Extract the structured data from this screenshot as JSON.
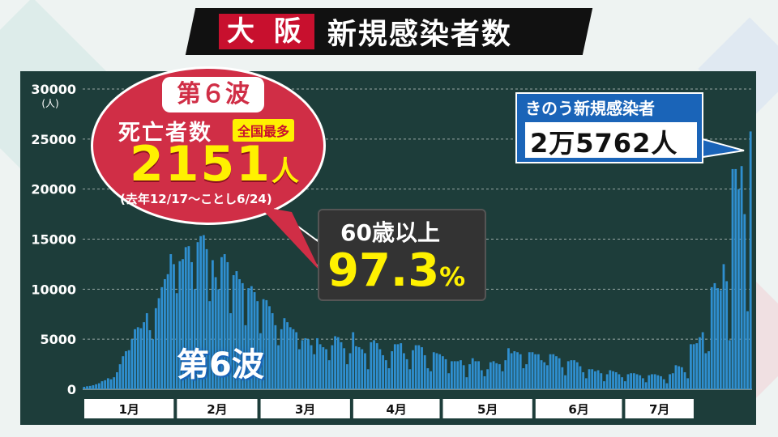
{
  "header": {
    "prefecture": "大 阪",
    "title": "新規感染者数"
  },
  "callouts": {
    "wave_label": "第６波",
    "deaths_label": "死亡者数",
    "national_badge": "全国最多",
    "deaths_value": "2151",
    "deaths_unit": "人",
    "deaths_period": "(去年12/17〜ことし6/24)",
    "elderly_label": "60歳以上",
    "elderly_value": "97.3",
    "elderly_unit": "%",
    "yesterday_label": "きのう新規感染者",
    "yesterday_value": "2万5762人",
    "wave_overlay": "第6波"
  },
  "colors": {
    "bar": "#2f8fd0",
    "panel": "#1d3d3a",
    "callout_red": "#d02e46",
    "highlight_yellow": "#fff100",
    "accent_blue": "#1a64b8"
  },
  "chart_data": {
    "type": "bar",
    "title": "新規感染者数",
    "xlabel": "",
    "ylabel": "(人)",
    "ylim": [
      0,
      30000
    ],
    "yticks": [
      0,
      5000,
      10000,
      15000,
      20000,
      25000,
      30000
    ],
    "ytick_labels": [
      "0",
      "5000",
      "10000",
      "15000",
      "20000",
      "25000",
      "30000"
    ],
    "y_unit_label": "(人)",
    "months": [
      "1月",
      "2月",
      "3月",
      "4月",
      "5月",
      "6月",
      "7月"
    ],
    "month_days": [
      31,
      28,
      31,
      30,
      31,
      30,
      24
    ],
    "grid": true,
    "values": [
      244,
      300,
      333,
      400,
      500,
      600,
      800,
      900,
      1100,
      1000,
      1200,
      1700,
      2500,
      3300,
      3800,
      3900,
      5000,
      6000,
      6200,
      6100,
      6700,
      7600,
      5900,
      5000,
      8100,
      9100,
      10200,
      11000,
      11500,
      13500,
      12500,
      9600,
      12800,
      13000,
      14200,
      14300,
      12700,
      10000,
      14700,
      15300,
      15400,
      14000,
      8800,
      12900,
      11200,
      10000,
      13200,
      13500,
      12700,
      7600,
      11400,
      11800,
      11000,
      10600,
      6400,
      10100,
      10300,
      9700,
      8800,
      5600,
      9000,
      8900,
      8300,
      7600,
      6400,
      4400,
      6000,
      7100,
      6700,
      6200,
      6000,
      5700,
      4000,
      4900,
      5100,
      5000,
      4400,
      3500,
      5100,
      4500,
      4200,
      4000,
      2900,
      4400,
      5300,
      5200,
      4700,
      4100,
      2500,
      3600,
      5700,
      4300,
      4200,
      4000,
      3600,
      2000,
      4700,
      4900,
      4600,
      4000,
      3400,
      2900,
      2100,
      3800,
      4500,
      4500,
      4600,
      3600,
      3000,
      2000,
      3900,
      4400,
      4400,
      4200,
      3400,
      2100,
      1800,
      3700,
      3600,
      3500,
      3300,
      3000,
      1600,
      2800,
      2800,
      2800,
      2900,
      2400,
      1200,
      2500,
      3100,
      2800,
      2800,
      1900,
      1300,
      2000,
      2700,
      2800,
      2600,
      2500,
      1800,
      2900,
      4100,
      3600,
      3800,
      3700,
      3500,
      2100,
      2500,
      3700,
      3700,
      3500,
      3500,
      2900,
      2700,
      2400,
      3500,
      3500,
      3300,
      3100,
      2200,
      1400,
      2800,
      2900,
      2900,
      2700,
      2300,
      1700,
      1100,
      2000,
      2000,
      1800,
      1900,
      1600,
      800,
      1500,
      1900,
      1800,
      1700,
      1500,
      1200,
      800,
      1500,
      1600,
      1600,
      1500,
      1400,
      1100,
      700,
      1400,
      1500,
      1500,
      1400,
      1300,
      1000,
      600,
      1500,
      1600,
      2400,
      2300,
      2200,
      1700,
      1100,
      4500,
      4500,
      4600,
      5200,
      5700,
      3600,
      3800,
      10200,
      10600,
      10100,
      9900,
      12500,
      10800,
      4900,
      22000,
      22000,
      20000,
      22300,
      17500,
      7800,
      25762
    ]
  }
}
